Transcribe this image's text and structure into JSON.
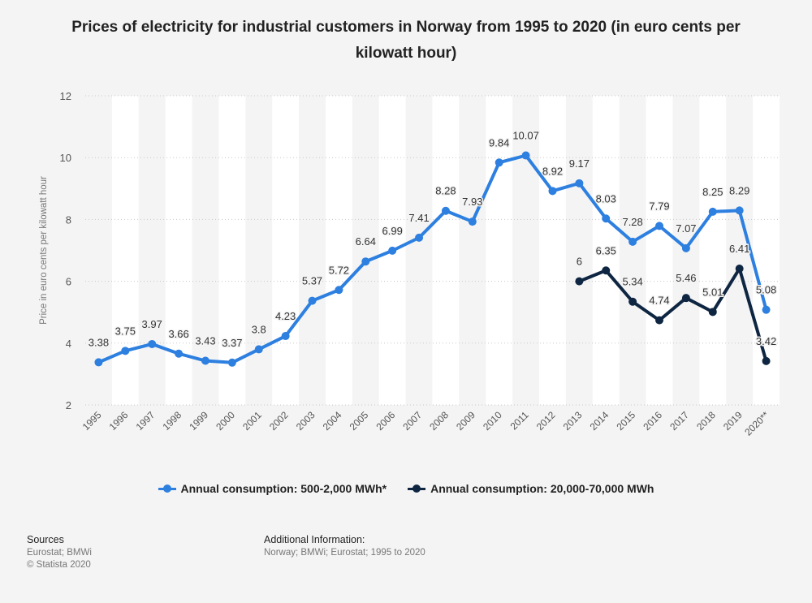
{
  "title": "Prices of electricity for industrial customers in Norway from 1995 to 2020 (in euro cents per kilowatt hour)",
  "chart_data": {
    "type": "line",
    "title": "Prices of electricity for industrial customers in Norway from 1995 to 2020 (in euro cents per kilowatt hour)",
    "xlabel": "",
    "ylabel": "Price in euro cents per kilowatt hour",
    "ylim": [
      2,
      12
    ],
    "yticks": [
      2,
      4,
      6,
      8,
      10,
      12
    ],
    "grid": true,
    "legend_position": "bottom",
    "categories": [
      "1995",
      "1996",
      "1997",
      "1998",
      "1999",
      "2000",
      "2001",
      "2002",
      "2003",
      "2004",
      "2005",
      "2006",
      "2007",
      "2008",
      "2009",
      "2010",
      "2011",
      "2012",
      "2013",
      "2014",
      "2015",
      "2016",
      "2017",
      "2018",
      "2019",
      "2020**"
    ],
    "series": [
      {
        "name": "Annual consumption: 500-2,000 MWh*",
        "color": "#2d7fe0",
        "values": [
          3.38,
          3.75,
          3.97,
          3.66,
          3.43,
          3.37,
          3.8,
          4.23,
          5.37,
          5.72,
          6.64,
          6.99,
          7.41,
          8.28,
          7.93,
          9.84,
          10.07,
          8.92,
          9.17,
          8.03,
          7.28,
          7.79,
          7.07,
          8.25,
          8.29,
          5.08
        ],
        "labels": [
          "3.38",
          "3.75",
          "3.97",
          "3.66",
          "3.43",
          "3.37",
          "3.8",
          "4.23",
          "5.37",
          "5.72",
          "6.64",
          "6.99",
          "7.41",
          "8.28",
          "7.93",
          "9.84",
          "10.07",
          "8.92",
          "9.17",
          "8.03",
          "7.28",
          "7.79",
          "7.07",
          "8.25",
          "8.29",
          "5.08"
        ]
      },
      {
        "name": "Annual consumption: 20,000-70,000 MWh",
        "color": "#0f2642",
        "values": [
          null,
          null,
          null,
          null,
          null,
          null,
          null,
          null,
          null,
          null,
          null,
          null,
          null,
          null,
          null,
          null,
          null,
          null,
          6,
          6.35,
          5.34,
          4.74,
          5.46,
          5.01,
          6.41,
          3.42
        ],
        "labels": [
          null,
          null,
          null,
          null,
          null,
          null,
          null,
          null,
          null,
          null,
          null,
          null,
          null,
          null,
          null,
          null,
          null,
          null,
          "6",
          "6.35",
          "5.34",
          "4.74",
          "5.46",
          "5.01",
          "6.41",
          "3.42"
        ]
      }
    ]
  },
  "footer": {
    "sources_heading": "Sources",
    "sources_line1": "Eurostat; BMWi",
    "sources_line2": "© Statista 2020",
    "info_heading": "Additional Information:",
    "info_line1": "Norway; BMWi; Eurostat; 1995 to 2020"
  }
}
